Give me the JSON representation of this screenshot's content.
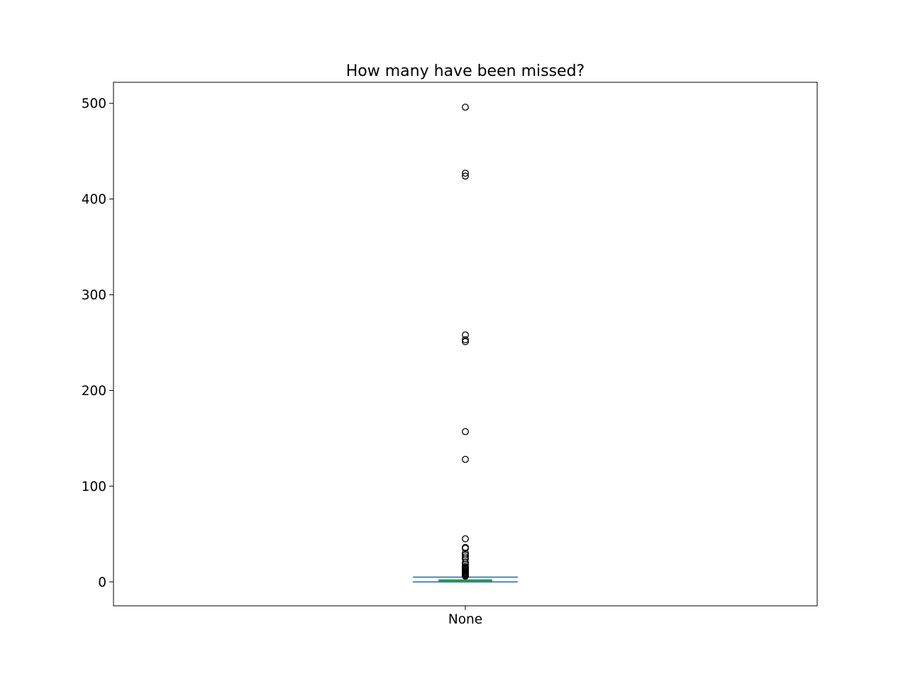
{
  "chart_data": {
    "type": "box",
    "title": "How many have been missed?",
    "xlabel": "",
    "ylabel": "",
    "categories": [
      "None"
    ],
    "ylim": [
      -25,
      522
    ],
    "yticks": [
      0,
      100,
      200,
      300,
      400,
      500
    ],
    "grid": false,
    "legend": "none",
    "box": {
      "whisker_low": 0,
      "q1": 0,
      "median": 1,
      "q3": 2,
      "whisker_high": 5
    },
    "outliers": [
      496,
      427,
      424,
      258,
      253,
      251,
      157,
      128,
      45,
      36,
      35,
      30,
      28,
      26,
      24,
      20,
      18,
      16,
      15,
      14,
      13,
      12,
      11,
      10,
      9,
      8,
      7,
      6
    ],
    "colors": {
      "box": "#1f77b4",
      "median": "#2ca02c",
      "whisker": "#1f77b4",
      "outlier_edge": "#000000"
    }
  }
}
